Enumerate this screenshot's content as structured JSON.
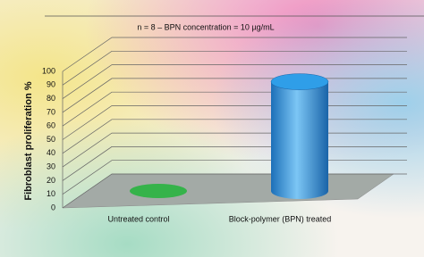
{
  "chart_data": {
    "type": "bar3d",
    "title": "n = 8 – BPN concentration = 10 µg/mL",
    "ylabel": "Fibroblast proliferation %",
    "categories": [
      "Untreated control",
      "Block-polymer (BPN) treated"
    ],
    "values": [
      0,
      80
    ],
    "colors": [
      "#35b34a",
      "#2f9ee8"
    ],
    "ylim": [
      0,
      100
    ],
    "yticks": [
      0,
      10,
      20,
      30,
      40,
      50,
      60,
      70,
      80,
      90,
      100
    ],
    "grid": true
  }
}
